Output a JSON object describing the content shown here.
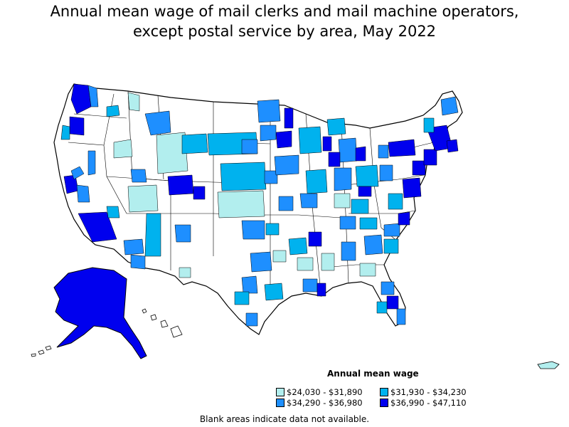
{
  "title_line1": "Annual mean wage of mail clerks and mail machine operators,",
  "title_line2": "except postal service by area, May 2022",
  "legend": {
    "title": "Annual mean wage",
    "items": [
      {
        "label": "$24,030 - $31,890",
        "color": "#b2eeee"
      },
      {
        "label": "$31,930 - $34,230",
        "color": "#00b2ee"
      },
      {
        "label": "$34,290 - $36,980",
        "color": "#1e8fff"
      },
      {
        "label": "$36,990 - $47,110",
        "color": "#0000ee"
      }
    ]
  },
  "note": "Blank areas indicate data not available.",
  "colors": {
    "no_data": "#ffffff",
    "border": "#000000",
    "tier1": "#b2eeee",
    "tier2": "#00b2ee",
    "tier3": "#1e8fff",
    "tier4": "#0000ee"
  }
}
